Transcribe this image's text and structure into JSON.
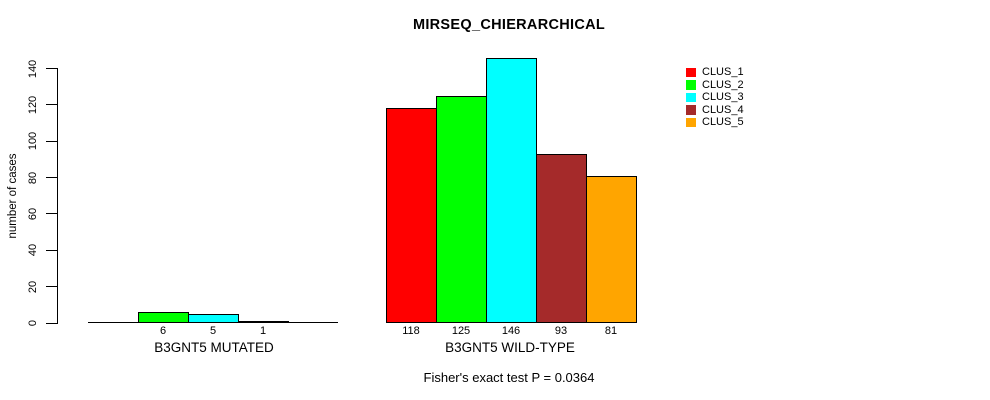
{
  "page": {
    "background": "#FFFFFF",
    "text_color": "#000000"
  },
  "chart_data": {
    "type": "bar",
    "title": "MIRSEQ_CHIERARCHICAL",
    "ylabel": "number of cases",
    "xlabel": "",
    "ylim": [
      0,
      140
    ],
    "yticks": [
      0,
      20,
      40,
      60,
      80,
      100,
      120,
      140
    ],
    "grid": false,
    "categories": [
      "B3GNT5 MUTATED",
      "B3GNT5 WILD-TYPE"
    ],
    "series": [
      {
        "name": "CLUS_1",
        "color": "#FF0000",
        "values": [
          0,
          118
        ]
      },
      {
        "name": "CLUS_2",
        "color": "#00FF00",
        "values": [
          6,
          125
        ]
      },
      {
        "name": "CLUS_3",
        "color": "#00FFFF",
        "values": [
          5,
          146
        ]
      },
      {
        "name": "CLUS_4",
        "color": "#A52A2A",
        "values": [
          1,
          93
        ]
      },
      {
        "name": "CLUS_5",
        "color": "#FFA500",
        "values": [
          0,
          81
        ]
      }
    ],
    "bar_value_labels": [
      [
        "",
        "6",
        "5",
        "1",
        ""
      ],
      [
        "118",
        "125",
        "146",
        "93",
        "81"
      ]
    ],
    "legend": {
      "position": "topright",
      "entries": [
        "CLUS_1",
        "CLUS_2",
        "CLUS_3",
        "CLUS_4",
        "CLUS_5"
      ]
    },
    "annotation": "Fisher's exact test P = 0.0364",
    "bar_border_color": "#000000"
  }
}
